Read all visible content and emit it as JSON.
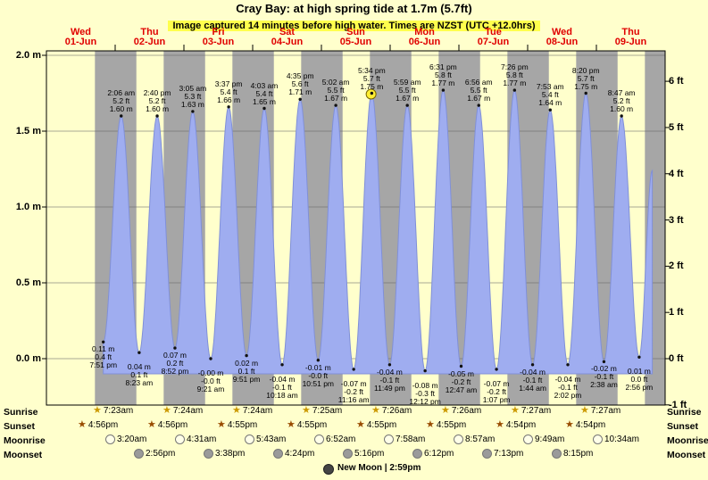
{
  "title": "Cray Bay: at high  spring tide at 1.7m (5.7ft)",
  "subtitle": "Image captured 14 minutes before high water. Times are NZST (UTC +12.0hrs)",
  "colors": {
    "background": "#ffffcc",
    "night_band": "#a6a6a6",
    "tide_fill": "#9fadf0",
    "tide_stroke": "#8090d8",
    "day_label": "#e00000",
    "grid": "#666666",
    "now_marker": "#ffee33",
    "sunrise_star": "#cc9900",
    "sunset_star": "#994c00",
    "moonrise_fill": "#ffffe8",
    "moonset_fill": "#9a9a9a",
    "new_moon_fill": "#444444"
  },
  "axis": {
    "m_ticks": [
      {
        "label": "0.0 m",
        "value": 0.0
      },
      {
        "label": "0.5 m",
        "value": 0.5
      },
      {
        "label": "1.0 m",
        "value": 1.0
      },
      {
        "label": "1.5 m",
        "value": 1.5
      },
      {
        "label": "2.0 m",
        "value": 2.0
      }
    ],
    "ft_ticks": [
      {
        "label": "-1 ft",
        "value": -1
      },
      {
        "label": "0 ft",
        "value": 0
      },
      {
        "label": "1 ft",
        "value": 1
      },
      {
        "label": "2 ft",
        "value": 2
      },
      {
        "label": "3 ft",
        "value": 3
      },
      {
        "label": "4 ft",
        "value": 4
      },
      {
        "label": "5 ft",
        "value": 5
      },
      {
        "label": "6 ft",
        "value": 6
      }
    ]
  },
  "days": [
    {
      "dow": "Wed",
      "date": "01-Jun"
    },
    {
      "dow": "Thu",
      "date": "02-Jun"
    },
    {
      "dow": "Fri",
      "date": "03-Jun"
    },
    {
      "dow": "Sat",
      "date": "04-Jun"
    },
    {
      "dow": "Sun",
      "date": "05-Jun"
    },
    {
      "dow": "Mon",
      "date": "06-Jun"
    },
    {
      "dow": "Tue",
      "date": "07-Jun"
    },
    {
      "dow": "Wed",
      "date": "08-Jun"
    },
    {
      "dow": "Thu",
      "date": "09-Jun"
    }
  ],
  "chart_data": {
    "type": "area",
    "series_name": "tide height",
    "t_unit": "hours from 00:00 on Wed 01-Jun",
    "t_span": [
      0,
      216
    ],
    "ylim_m": [
      -0.31,
      2.03
    ],
    "grid": "horizontal lines at each 0.5 m tick",
    "night_bands": "grey bands from sunset (~4:55pm) to sunrise (~7:25am)",
    "extremes": [
      {
        "t": 19.85,
        "h": 0.11,
        "kind": "low",
        "lines": [
          "0.11 m",
          "0.4 ft",
          "7:51 pm"
        ]
      },
      {
        "t": 26.1,
        "h": 1.6,
        "kind": "high",
        "lines": [
          "2:06 am",
          "5.2 ft",
          "1.60 m"
        ]
      },
      {
        "t": 32.38,
        "h": 0.04,
        "kind": "low",
        "lines": [
          "0.04 m",
          "0.1 ft",
          "8:23 am"
        ]
      },
      {
        "t": 38.67,
        "h": 1.6,
        "kind": "high",
        "lines": [
          "2:40 pm",
          "5.2 ft",
          "1.60 m"
        ]
      },
      {
        "t": 44.87,
        "h": 0.07,
        "kind": "low",
        "lines": [
          "0.07 m",
          "0.2 ft",
          "8:52 pm"
        ]
      },
      {
        "t": 51.08,
        "h": 1.63,
        "kind": "high",
        "lines": [
          "3:05 am",
          "5.3 ft",
          "1.63 m"
        ]
      },
      {
        "t": 57.35,
        "h": 0.0,
        "kind": "low",
        "lines": [
          "-0.00 m",
          "-0.0 ft",
          "9:21 am"
        ]
      },
      {
        "t": 63.62,
        "h": 1.66,
        "kind": "high",
        "lines": [
          "3:37 pm",
          "5.4 ft",
          "1.66 m"
        ]
      },
      {
        "t": 69.85,
        "h": 0.02,
        "kind": "low",
        "lines": [
          "0.02 m",
          "0.1 ft",
          "9:51 pm"
        ]
      },
      {
        "t": 76.05,
        "h": 1.65,
        "kind": "high",
        "lines": [
          "4:03 am",
          "5.4 ft",
          "1.65 m"
        ]
      },
      {
        "t": 82.3,
        "h": -0.04,
        "kind": "low",
        "lines": [
          "-0.04 m",
          "-0.1 ft",
          "10:18 am"
        ]
      },
      {
        "t": 88.58,
        "h": 1.71,
        "kind": "high",
        "lines": [
          "4:35 pm",
          "5.6 ft",
          "1.71 m"
        ]
      },
      {
        "t": 94.85,
        "h": -0.01,
        "kind": "low",
        "lines": [
          "-0.01 m",
          "-0.0 ft",
          "10:51 pm"
        ]
      },
      {
        "t": 101.03,
        "h": 1.67,
        "kind": "high",
        "lines": [
          "5:02 am",
          "5.5 ft",
          "1.67 m"
        ]
      },
      {
        "t": 107.27,
        "h": -0.07,
        "kind": "low",
        "lines": [
          "-0.07 m",
          "-0.2 ft",
          "11:16 am"
        ]
      },
      {
        "t": 113.57,
        "h": 1.75,
        "kind": "high",
        "lines": [
          "5:34 pm",
          "5.7 ft",
          "1.75 m"
        ]
      },
      {
        "t": 119.82,
        "h": -0.04,
        "kind": "low",
        "lines": [
          "-0.04 m",
          "-0.1 ft",
          "11:49 pm"
        ]
      },
      {
        "t": 125.98,
        "h": 1.67,
        "kind": "high",
        "lines": [
          "5:59 am",
          "5.5 ft",
          "1.67 m"
        ]
      },
      {
        "t": 132.2,
        "h": -0.08,
        "kind": "low",
        "lines": [
          "-0.08 m",
          "-0.3 ft",
          "12:12 pm"
        ]
      },
      {
        "t": 138.52,
        "h": 1.77,
        "kind": "high",
        "lines": [
          "6:31 pm",
          "5.8 ft",
          "1.77 m"
        ]
      },
      {
        "t": 144.78,
        "h": -0.05,
        "kind": "low",
        "lines": [
          "-0.05 m",
          "-0.2 ft",
          "12:47 am"
        ]
      },
      {
        "t": 150.93,
        "h": 1.67,
        "kind": "high",
        "lines": [
          "6:56 am",
          "5.5 ft",
          "1.67 m"
        ]
      },
      {
        "t": 157.12,
        "h": -0.07,
        "kind": "low",
        "lines": [
          "-0.07 m",
          "-0.2 ft",
          "1:07 pm"
        ]
      },
      {
        "t": 163.43,
        "h": 1.77,
        "kind": "high",
        "lines": [
          "7:26 pm",
          "5.8 ft",
          "1.77 m"
        ]
      },
      {
        "t": 169.73,
        "h": -0.04,
        "kind": "low",
        "lines": [
          "-0.04 m",
          "-0.1 ft",
          "1:44 am"
        ]
      },
      {
        "t": 175.88,
        "h": 1.64,
        "kind": "high",
        "lines": [
          "7:53 am",
          "5.4 ft",
          "1.64 m"
        ]
      },
      {
        "t": 182.03,
        "h": -0.04,
        "kind": "low",
        "lines": [
          "-0.04 m",
          "-0.1 ft",
          "2:02 pm"
        ]
      },
      {
        "t": 188.33,
        "h": 1.75,
        "kind": "high",
        "lines": [
          "8:20 pm",
          "5.7 ft",
          "1.75 m"
        ]
      },
      {
        "t": 194.63,
        "h": -0.02,
        "kind": "low",
        "lines": [
          "-0.02 m",
          "-0.1 ft",
          "2:38 am"
        ]
      },
      {
        "t": 200.78,
        "h": 1.6,
        "kind": "high",
        "lines": [
          "8:47 am",
          "5.2 ft",
          "1.60 m"
        ]
      },
      {
        "t": 206.93,
        "h": 0.01,
        "kind": "low",
        "lines": [
          "0.01 m",
          "0.0 ft",
          "2:56 pm"
        ]
      },
      {
        "t": 211.5,
        "h": 1.24,
        "kind": "edge",
        "lines": []
      }
    ],
    "now_marker": {
      "t": 113.34,
      "h": 1.744,
      "at_high": "5:34 pm",
      "note": "captured 14 minutes before high water"
    }
  },
  "almanac": {
    "rows": [
      {
        "id": "sunrise",
        "label": "Sunrise",
        "times": [
          "7:23am",
          "7:24am",
          "7:24am",
          "7:25am",
          "7:26am",
          "7:26am",
          "7:27am",
          "7:27am"
        ]
      },
      {
        "id": "sunset",
        "label": "Sunset",
        "times": [
          "4:56pm",
          "4:56pm",
          "4:55pm",
          "4:55pm",
          "4:55pm",
          "4:55pm",
          "4:54pm",
          "4:54pm"
        ]
      },
      {
        "id": "moonrise",
        "label": "Moonrise",
        "times": [
          "3:20am",
          "4:31am",
          "5:43am",
          "6:52am",
          "7:58am",
          "8:57am",
          "9:49am",
          "10:34am"
        ]
      },
      {
        "id": "moonset",
        "label": "Moonset",
        "times": [
          "2:56pm",
          "3:38pm",
          "4:24pm",
          "5:16pm",
          "6:12pm",
          "7:13pm",
          "8:15pm"
        ]
      }
    ],
    "new_moon": {
      "label": "New Moon | 2:59pm"
    }
  }
}
